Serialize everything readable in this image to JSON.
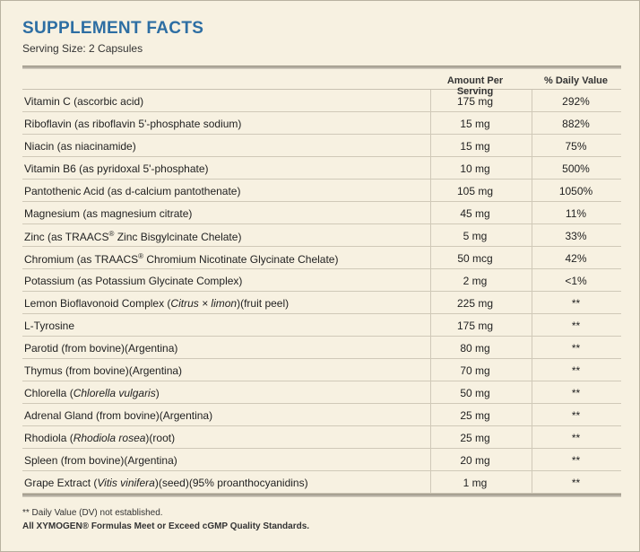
{
  "title": "SUPPLEMENT FACTS",
  "serving": "Serving Size: 2 Capsules",
  "headers": {
    "amount": "Amount Per Serving",
    "dv": "% Daily Value"
  },
  "rows": [
    {
      "parts": [
        "Vitamin C (ascorbic acid)"
      ],
      "amount": "175 mg",
      "dv": "292%"
    },
    {
      "parts": [
        "Riboflavin (as riboflavin 5'-phosphate sodium)"
      ],
      "amount": "15 mg",
      "dv": "882%"
    },
    {
      "parts": [
        "Niacin (as niacinamide)"
      ],
      "amount": "15 mg",
      "dv": "75%"
    },
    {
      "parts": [
        "Vitamin B6 (as pyridoxal 5'-phosphate)"
      ],
      "amount": "10 mg",
      "dv": "500%"
    },
    {
      "parts": [
        "Pantothenic Acid (as d-calcium pantothenate)"
      ],
      "amount": "105 mg",
      "dv": "1050%"
    },
    {
      "parts": [
        "Magnesium (as magnesium citrate)"
      ],
      "amount": "45 mg",
      "dv": "11%"
    },
    {
      "parts": [
        "Zinc (as TRAACS",
        "®",
        " Zinc Bisgylcinate Chelate)"
      ],
      "amount": "5 mg",
      "dv": "33%"
    },
    {
      "parts": [
        "Chromium (as TRAACS",
        "®",
        " Chromium Nicotinate Glycinate Chelate)"
      ],
      "amount": "50 mcg",
      "dv": "42%"
    },
    {
      "parts": [
        "Potassium (as Potassium Glycinate Complex)"
      ],
      "amount": "2 mg",
      "dv": "<1%"
    },
    {
      "parts": [
        "Lemon Bioflavonoid Complex (",
        "Citrus × limon",
        ")(fruit peel)"
      ],
      "amount": "225 mg",
      "dv": "**"
    },
    {
      "parts": [
        "L-Tyrosine"
      ],
      "amount": "175 mg",
      "dv": "**"
    },
    {
      "parts": [
        "Parotid (from bovine)(Argentina)"
      ],
      "amount": "80 mg",
      "dv": "**"
    },
    {
      "parts": [
        "Thymus (from bovine)(Argentina)"
      ],
      "amount": "70 mg",
      "dv": "**"
    },
    {
      "parts": [
        "Chlorella (",
        "Chlorella vulgaris",
        ")"
      ],
      "amount": "50 mg",
      "dv": "**"
    },
    {
      "parts": [
        "Adrenal Gland (from bovine)(Argentina)"
      ],
      "amount": "25 mg",
      "dv": "**"
    },
    {
      "parts": [
        "Rhodiola (",
        "Rhodiola rosea",
        ")(root)"
      ],
      "amount": "25 mg",
      "dv": "**"
    },
    {
      "parts": [
        "Spleen (from bovine)(Argentina)"
      ],
      "amount": "20 mg",
      "dv": "**"
    },
    {
      "parts": [
        "Grape Extract (",
        "Vitis vinifera",
        ")(seed)(95% proanthocyanidins)"
      ],
      "amount": "1 mg",
      "dv": "**"
    }
  ],
  "footnote": "** Daily Value (DV) not established.",
  "quality": "All XYMOGEN® Formulas Meet or Exceed cGMP Quality Standards."
}
